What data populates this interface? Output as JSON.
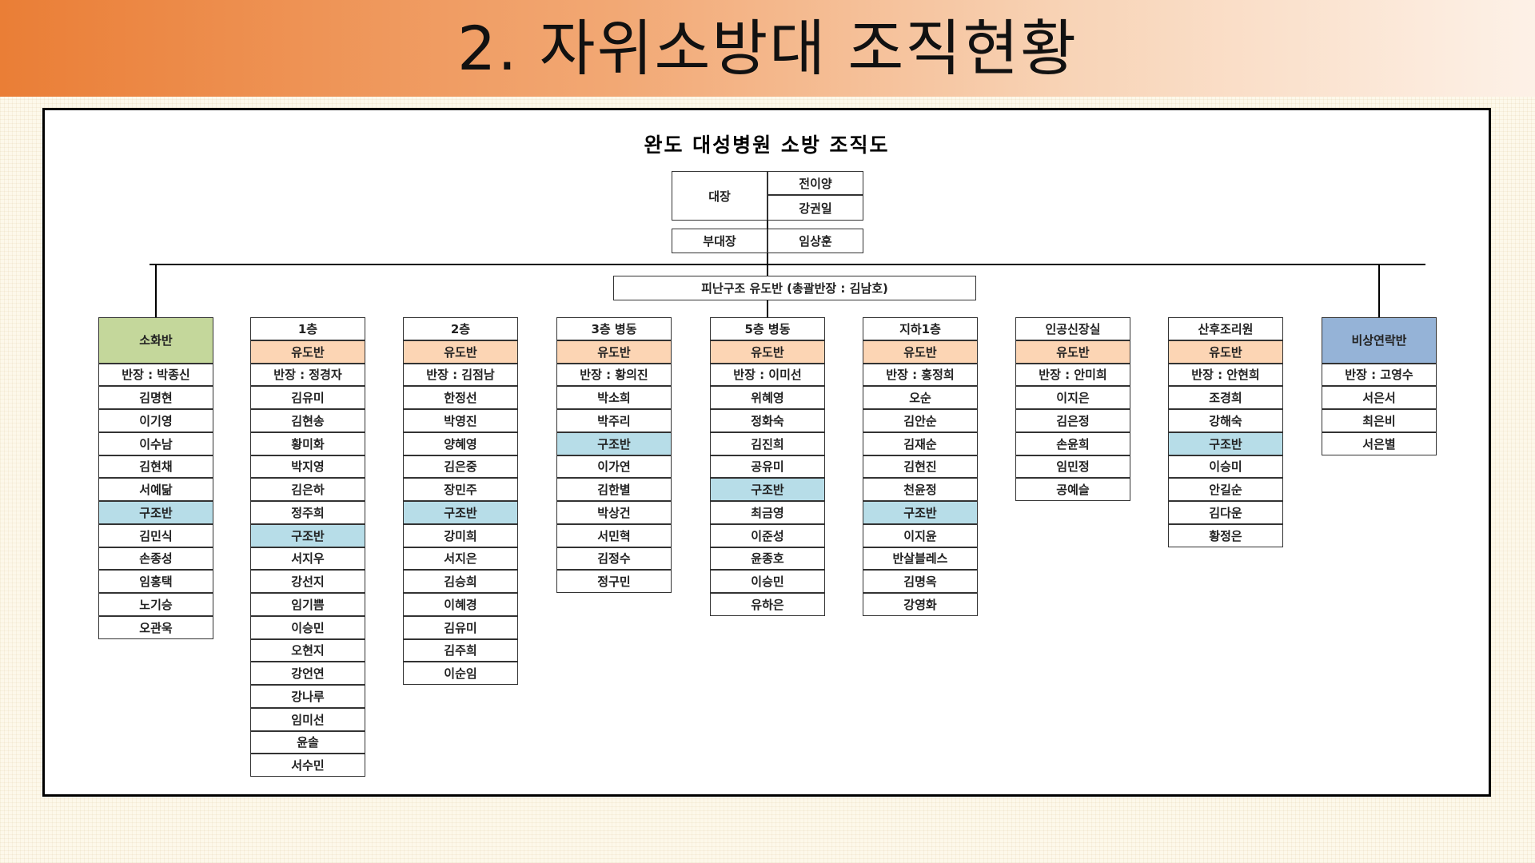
{
  "slide": {
    "title": "2. 자위소방대 조직현황"
  },
  "chart": {
    "title": "완도 대성병원 소방 조직도",
    "top": {
      "captain_label": "대장",
      "captains": [
        "전이양",
        "강권일"
      ],
      "vice_label": "부대장",
      "vice": "임상훈",
      "evac_box": "피난구조 유도반 (총괄반장 : 김남호)"
    },
    "colors": {
      "green": "#c4d79b",
      "orange": "#fcd5b4",
      "blue": "#b7dde8",
      "purple_blue": "#95b3d7"
    },
    "columns": [
      {
        "header": "소화반",
        "header_color": "#c4d79b",
        "leader": "반장 : 박종신",
        "members": [
          "김명현",
          "이기영",
          "이수남",
          "김현채",
          "서예닮",
          "구조반",
          "김민식",
          "손종성",
          "임홍택",
          "노기승",
          "오관욱"
        ]
      },
      {
        "header": "1층",
        "unit": "유도반",
        "leader": "반장 : 정경자",
        "members": [
          "김유미",
          "김현송",
          "황미화",
          "박지영",
          "김은하",
          "정주희",
          "구조반",
          "서지우",
          "강선지",
          "임기쁨",
          "이승민",
          "오현지",
          "강언연",
          "강나루",
          "임미선",
          "윤솔",
          "서수민"
        ]
      },
      {
        "header": "2층",
        "unit": "유도반",
        "leader": "반장 : 김점남",
        "members": [
          "한정선",
          "박영진",
          "양혜영",
          "김은중",
          "장민주",
          "구조반",
          "강미희",
          "서지은",
          "김승희",
          "이혜경",
          "김유미",
          "김주희",
          "이순임"
        ]
      },
      {
        "header": "3층 병동",
        "unit": "유도반",
        "leader": "반장 : 황의진",
        "members": [
          "박소희",
          "박주리",
          "구조반",
          "이가연",
          "김한별",
          "박상건",
          "서민혁",
          "김정수",
          "정구민"
        ]
      },
      {
        "header": "5층 병동",
        "unit": "유도반",
        "leader": "반장 : 이미선",
        "members": [
          "위혜영",
          "정화숙",
          "김진희",
          "공유미",
          "구조반",
          "최금영",
          "이준성",
          "윤종호",
          "이승민",
          "유하은"
        ]
      },
      {
        "header": "지하1층",
        "unit": "유도반",
        "leader": "반장 : 홍정희",
        "members": [
          "오순",
          "김안순",
          "김재순",
          "김현진",
          "천윤정",
          "구조반",
          "이지윤",
          "반살블레스",
          "김명옥",
          "강영화"
        ]
      },
      {
        "header": "인공신장실",
        "unit": "유도반",
        "leader": "반장 : 안미희",
        "members": [
          "이지은",
          "김은정",
          "손윤희",
          "임민정",
          "공예슬"
        ]
      },
      {
        "header": "산후조리원",
        "unit": "유도반",
        "leader": "반장 : 안현희",
        "members": [
          "조경희",
          "강해숙",
          "구조반",
          "이승미",
          "안길순",
          "김다운",
          "황정은"
        ]
      },
      {
        "header": "비상연락반",
        "header_color": "#95b3d7",
        "leader": "반장 : 고영수",
        "members": [
          "서은서",
          "최은비",
          "서은별"
        ]
      }
    ]
  }
}
